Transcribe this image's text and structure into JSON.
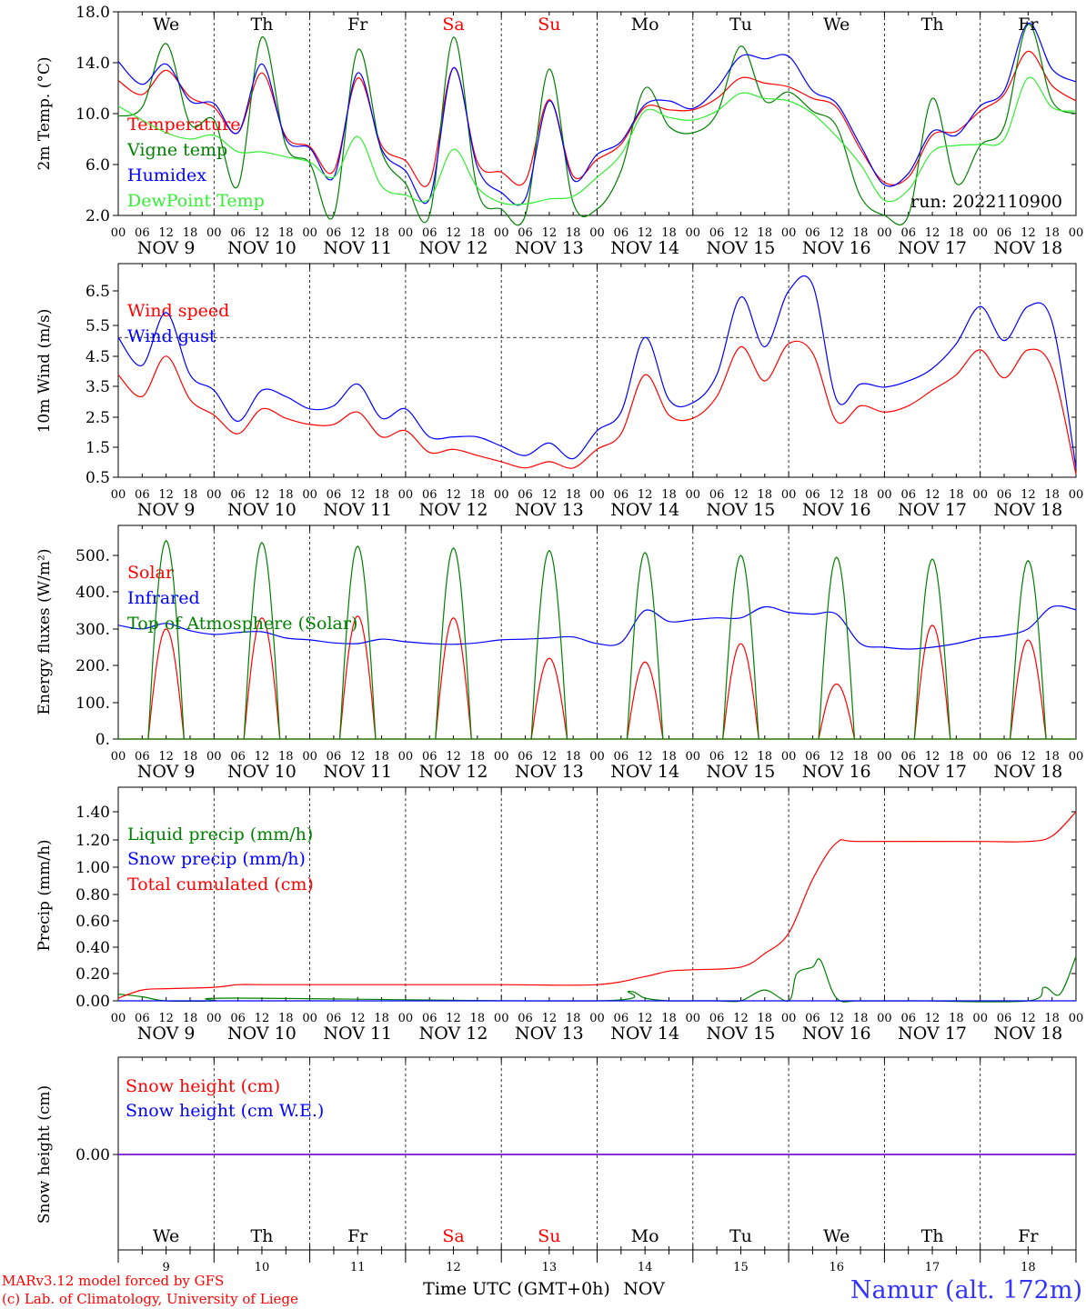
{
  "time_axis": {
    "hours": [
      "00",
      "06",
      "12",
      "18"
    ],
    "dates": [
      "NOV  9",
      "NOV 10",
      "NOV 11",
      "NOV 12",
      "NOV 13",
      "NOV 14",
      "NOV 15",
      "NOV 16",
      "NOV 17",
      "NOV 18"
    ],
    "weekdays": [
      {
        "label": "We",
        "color": "#000000"
      },
      {
        "label": "Th",
        "color": "#000000"
      },
      {
        "label": "Fr",
        "color": "#000000"
      },
      {
        "label": "Sa",
        "color": "#ff0000"
      },
      {
        "label": "Su",
        "color": "#ff0000"
      },
      {
        "label": "Mo",
        "color": "#000000"
      },
      {
        "label": "Tu",
        "color": "#000000"
      },
      {
        "label": "We",
        "color": "#000000"
      },
      {
        "label": "Th",
        "color": "#000000"
      },
      {
        "label": "Fr",
        "color": "#000000"
      }
    ],
    "day_numbers": [
      "9",
      "10",
      "11",
      "12",
      "13",
      "14",
      "15",
      "16",
      "17",
      "18"
    ],
    "xlabel": "Time UTC (GMT+0h)",
    "month_label": "NOV"
  },
  "footer": {
    "model_line1": "MARv3.12 model forced by GFS",
    "model_line2": "(c) Lab. of Climatology, University of Liege",
    "location": "Namur (alt. 172m)"
  },
  "chart_data": [
    {
      "type": "line",
      "ylabel": "2m Temp. (°C)",
      "ylim": [
        2,
        18
      ],
      "yticks": [
        "2.0",
        "6.0",
        "10.0",
        "14.0",
        "18.0"
      ],
      "annotation": "run: 2022110900",
      "x_unit": "hours since NOV 9 00 UTC",
      "series": [
        {
          "name": "Temperature",
          "color": "#ff0000",
          "x": [
            0,
            6,
            12,
            18,
            24,
            30,
            36,
            42,
            48,
            54,
            60,
            66,
            72,
            78,
            84,
            90,
            96,
            102,
            108,
            114,
            120,
            126,
            132,
            138,
            144,
            150,
            156,
            162,
            168,
            174,
            180,
            186,
            192,
            198,
            204,
            210,
            216,
            222,
            228,
            234,
            240
          ],
          "y": [
            12.6,
            11.5,
            13.4,
            11.3,
            10.5,
            8.5,
            13.2,
            8.2,
            7.4,
            5.5,
            12.8,
            7.5,
            6.3,
            4.6,
            13.6,
            6.2,
            5.4,
            4.7,
            11.1,
            5.1,
            6.4,
            7.6,
            10.5,
            10.3,
            10.3,
            11.2,
            12.8,
            12.4,
            12.1,
            11.2,
            10.5,
            7.2,
            4.6,
            5.0,
            8.3,
            8.6,
            10.2,
            11.5,
            14.9,
            12.2,
            11.0
          ]
        },
        {
          "name": "Vigne temp",
          "color": "#008000",
          "x": [
            0,
            6,
            12,
            18,
            24,
            30,
            36,
            42,
            48,
            54,
            60,
            66,
            72,
            78,
            84,
            90,
            96,
            102,
            108,
            114,
            120,
            126,
            132,
            138,
            144,
            150,
            156,
            162,
            168,
            174,
            180,
            186,
            192,
            198,
            204,
            210,
            216,
            222,
            228,
            234,
            240
          ],
          "y": [
            9.8,
            10.5,
            15.5,
            9.2,
            9.5,
            4.3,
            16.0,
            7.5,
            6.1,
            2.0,
            15.0,
            7.0,
            4.5,
            2.0,
            16.0,
            4.0,
            2.5,
            2.0,
            13.5,
            3.0,
            2.5,
            5.5,
            12.0,
            9.0,
            8.5,
            10.0,
            15.3,
            11.0,
            11.7,
            10.2,
            9.0,
            3.5,
            2.0,
            2.0,
            11.2,
            4.5,
            7.5,
            9.0,
            17.0,
            11.0,
            10.0
          ]
        },
        {
          "name": "Humidex",
          "color": "#0000ff",
          "x": [
            0,
            6,
            12,
            18,
            24,
            30,
            36,
            42,
            48,
            54,
            60,
            66,
            72,
            78,
            84,
            90,
            96,
            102,
            108,
            114,
            120,
            126,
            132,
            138,
            144,
            150,
            156,
            162,
            168,
            174,
            180,
            186,
            192,
            198,
            204,
            210,
            216,
            222,
            228,
            234,
            240
          ],
          "y": [
            14.1,
            12.3,
            13.9,
            11.0,
            10.8,
            8.5,
            13.9,
            8.0,
            7.3,
            5.0,
            13.2,
            7.2,
            5.5,
            3.3,
            13.6,
            5.8,
            3.8,
            3.3,
            11.0,
            4.8,
            6.8,
            7.8,
            10.7,
            11.0,
            10.4,
            12.0,
            14.5,
            14.3,
            14.5,
            11.8,
            10.8,
            7.5,
            4.4,
            5.3,
            8.6,
            8.3,
            10.6,
            11.8,
            17.1,
            13.5,
            12.5
          ]
        },
        {
          "name": "DewPoint Temp",
          "color": "#33ee33",
          "x": [
            0,
            6,
            12,
            18,
            24,
            30,
            36,
            42,
            48,
            54,
            60,
            66,
            72,
            78,
            84,
            90,
            96,
            102,
            108,
            114,
            120,
            126,
            132,
            138,
            144,
            150,
            156,
            162,
            168,
            174,
            180,
            186,
            192,
            198,
            204,
            210,
            216,
            222,
            228,
            234,
            240
          ],
          "y": [
            10.6,
            9.5,
            8.5,
            8.0,
            8.3,
            7.0,
            7.0,
            6.6,
            6.2,
            5.0,
            8.2,
            4.3,
            3.6,
            3.3,
            7.2,
            4.2,
            3.0,
            2.9,
            3.3,
            3.5,
            5.0,
            6.8,
            10.2,
            9.7,
            9.5,
            10.2,
            11.6,
            11.2,
            11.0,
            10.0,
            8.2,
            6.0,
            3.2,
            4.0,
            7.0,
            7.5,
            7.6,
            8.0,
            12.8,
            10.5,
            10.2
          ]
        }
      ]
    },
    {
      "type": "line",
      "ylabel": "10m Wind (m/s)",
      "ylim": [
        0.5,
        7.0
      ],
      "yticks": [
        "0.5",
        "1.5",
        "2.5",
        "3.5",
        "4.5",
        "5.5",
        "6.5"
      ],
      "reference_line": 5.0,
      "series": [
        {
          "name": "Wind speed",
          "color": "#ff0000",
          "x": [
            0,
            6,
            12,
            18,
            24,
            30,
            36,
            42,
            48,
            54,
            60,
            66,
            72,
            78,
            84,
            90,
            96,
            102,
            108,
            114,
            120,
            126,
            132,
            138,
            144,
            150,
            156,
            162,
            168,
            174,
            180,
            186,
            192,
            198,
            204,
            210,
            216,
            222,
            228,
            234,
            240
          ],
          "y": [
            3.8,
            3.1,
            4.4,
            3.0,
            2.5,
            1.9,
            2.7,
            2.4,
            2.2,
            2.2,
            2.6,
            1.8,
            2.0,
            1.3,
            1.4,
            1.2,
            1.0,
            0.8,
            1.0,
            0.8,
            1.4,
            1.9,
            3.8,
            2.5,
            2.4,
            3.1,
            4.7,
            3.6,
            4.8,
            4.5,
            2.3,
            2.8,
            2.6,
            2.8,
            3.3,
            3.8,
            4.6,
            3.7,
            4.6,
            4.0,
            0.6
          ]
        },
        {
          "name": "Wind gust",
          "color": "#0000ff",
          "x": [
            0,
            6,
            12,
            18,
            24,
            30,
            36,
            42,
            48,
            54,
            60,
            66,
            72,
            78,
            84,
            90,
            96,
            102,
            108,
            114,
            120,
            126,
            132,
            138,
            144,
            150,
            156,
            162,
            168,
            174,
            180,
            186,
            192,
            198,
            204,
            210,
            216,
            222,
            228,
            234,
            240
          ],
          "y": [
            5.0,
            4.1,
            5.8,
            3.8,
            3.3,
            2.3,
            3.3,
            3.1,
            2.7,
            2.8,
            3.5,
            2.4,
            2.7,
            1.8,
            1.8,
            1.8,
            1.5,
            1.2,
            1.6,
            1.1,
            2.0,
            2.6,
            5.0,
            3.0,
            2.9,
            3.8,
            6.3,
            4.7,
            6.5,
            6.7,
            3.0,
            3.5,
            3.4,
            3.6,
            4.0,
            4.8,
            6.0,
            4.9,
            6.0,
            5.5,
            0.8
          ]
        }
      ]
    },
    {
      "type": "line",
      "ylabel": "Energy fluxes (W/m²)",
      "ylim": [
        0,
        560
      ],
      "yticks": [
        "0.",
        "100.",
        "200.",
        "300.",
        "400.",
        "500."
      ],
      "series": [
        {
          "name": "Solar",
          "color": "#ff0000",
          "daily_peak": [
            300,
            330,
            335,
            330,
            220,
            210,
            260,
            150,
            310,
            270
          ],
          "day_start": 7.5,
          "day_end": 16.5
        },
        {
          "name": "Infrared",
          "color": "#0000ff",
          "x": [
            0,
            6,
            12,
            18,
            24,
            30,
            36,
            42,
            48,
            54,
            60,
            66,
            72,
            78,
            84,
            90,
            96,
            102,
            108,
            114,
            120,
            126,
            132,
            138,
            144,
            150,
            156,
            162,
            168,
            174,
            180,
            186,
            192,
            198,
            204,
            210,
            216,
            222,
            228,
            234,
            240
          ],
          "y": [
            310,
            300,
            315,
            295,
            285,
            290,
            292,
            275,
            270,
            262,
            260,
            272,
            265,
            260,
            258,
            262,
            270,
            272,
            275,
            278,
            260,
            263,
            350,
            320,
            325,
            330,
            330,
            360,
            345,
            340,
            340,
            260,
            250,
            245,
            250,
            260,
            275,
            282,
            300,
            360,
            352
          ]
        },
        {
          "name": "Top of Atmosphere (Solar)",
          "color": "#008000",
          "daily_peak": [
            540,
            535,
            525,
            520,
            513,
            508,
            500,
            495,
            490,
            486
          ],
          "day_start": 7.5,
          "day_end": 16.5
        }
      ]
    },
    {
      "type": "line",
      "ylabel": "Precip (mm/h)",
      "ylim": [
        0,
        1.45
      ],
      "yticks": [
        "0.00",
        "0.20",
        "0.40",
        "0.60",
        "0.80",
        "1.00",
        "1.20",
        "1.40"
      ],
      "series": [
        {
          "name": "Liquid precip (mm/h)",
          "color": "#008000",
          "x": [
            0,
            6,
            12,
            24,
            30,
            120,
            128,
            132,
            138,
            144,
            150,
            156,
            162,
            168,
            170,
            174,
            176,
            180,
            186,
            200,
            228,
            232,
            236,
            240
          ],
          "y": [
            0.05,
            0.03,
            0.0,
            0.0,
            0.02,
            0.0,
            0.07,
            0.02,
            0.0,
            0.0,
            0.0,
            0.0,
            0.08,
            0.0,
            0.2,
            0.25,
            0.3,
            0.02,
            0.0,
            0.0,
            0.0,
            0.1,
            0.05,
            0.33
          ]
        },
        {
          "name": "Snow precip (mm/h)",
          "color": "#0000ff",
          "x": [
            0,
            240
          ],
          "y": [
            0,
            0
          ]
        },
        {
          "name": "Total cumulated (cm)",
          "color": "#ff0000",
          "x": [
            0,
            6,
            12,
            24,
            30,
            36,
            48,
            72,
            96,
            120,
            132,
            138,
            144,
            156,
            162,
            168,
            174,
            180,
            186,
            216,
            228,
            234,
            240
          ],
          "y": [
            0.02,
            0.08,
            0.09,
            0.1,
            0.12,
            0.12,
            0.12,
            0.12,
            0.12,
            0.12,
            0.18,
            0.22,
            0.23,
            0.25,
            0.35,
            0.5,
            0.9,
            1.17,
            1.18,
            1.18,
            1.18,
            1.22,
            1.4
          ]
        }
      ]
    },
    {
      "type": "line",
      "ylabel": "Snow height (cm)",
      "yticks": [
        "0.00"
      ],
      "series": [
        {
          "name": "Snow height (cm)",
          "color": "#ff0000",
          "x": [
            0,
            240
          ],
          "y": [
            0,
            0
          ]
        },
        {
          "name": "Snow height (cm W.E.)",
          "color": "#0000ff",
          "x": [
            0,
            240
          ],
          "y": [
            0,
            0
          ]
        }
      ]
    }
  ]
}
